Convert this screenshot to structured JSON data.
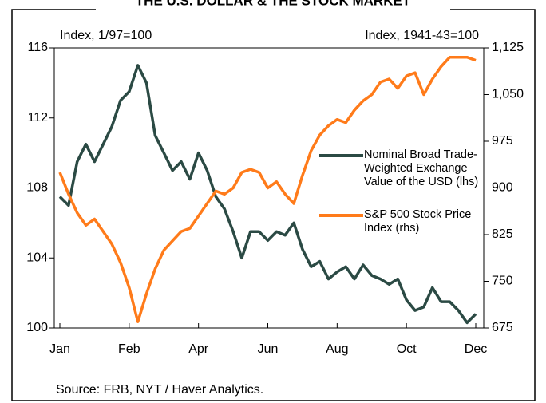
{
  "chart_data": {
    "type": "line",
    "title": "THE U.S. DOLLAR & THE STOCK MARKET",
    "y_label": "Index, 1/97=100",
    "y2_label": "Index, 1941-43=100",
    "source": "Source: FRB, NYT / Haver Analytics.",
    "categories": [
      "Jan",
      null,
      null,
      null,
      null,
      null,
      null,
      null,
      "Feb",
      null,
      null,
      null,
      null,
      null,
      null,
      null,
      "Apr",
      null,
      null,
      null,
      null,
      null,
      null,
      null,
      "Jun",
      null,
      null,
      null,
      null,
      null,
      null,
      null,
      "Aug",
      null,
      null,
      null,
      null,
      null,
      null,
      null,
      "Oct",
      null,
      null,
      null,
      null,
      null,
      null,
      null,
      "Dec"
    ],
    "ylim": [
      100,
      116
    ],
    "yticks": [
      100,
      104,
      108,
      112,
      116
    ],
    "y2lim": [
      675,
      1125
    ],
    "y2ticks": [
      675,
      750,
      825,
      900,
      975,
      {
        "value": 1050,
        "label": "1,050"
      },
      {
        "value": 1125,
        "label": "1,125"
      }
    ],
    "series": [
      {
        "name": "Nominal Broad Trade-Weighted Exchange Value of the USD (lhs)",
        "color": "#2b4a44",
        "values": [
          107.5,
          107.0,
          109.5,
          110.5,
          109.5,
          110.5,
          111.5,
          113,
          113.5,
          115,
          114,
          111,
          110,
          109,
          109.5,
          108.5,
          110,
          109,
          107.5,
          106.8,
          105.5,
          104,
          105.5,
          105.5,
          105,
          105.5,
          105.3,
          106,
          104.5,
          103.5,
          103.8,
          102.8,
          103.2,
          103.5,
          102.8,
          103.6,
          103,
          102.8,
          102.5,
          102.8,
          101.6,
          101,
          101.2,
          102.3,
          101.5,
          101.5,
          101,
          100.3,
          100.8
        ]
      },
      {
        "name": "S&P 500 Stock Price Index (rhs)",
        "color": "#ff7b1a",
        "axis": "y2",
        "values": [
          925,
          890,
          860,
          840,
          850,
          830,
          810,
          780,
          740,
          685,
          730,
          770,
          800,
          815,
          830,
          835,
          855,
          875,
          895,
          890,
          900,
          925,
          930,
          925,
          900,
          910,
          890,
          875,
          920,
          960,
          985,
          1000,
          1010,
          1005,
          1025,
          1040,
          1050,
          1070,
          1075,
          1060,
          1080,
          1085,
          1050,
          1075,
          1095,
          1110,
          1110,
          1110,
          1105
        ]
      }
    ]
  }
}
